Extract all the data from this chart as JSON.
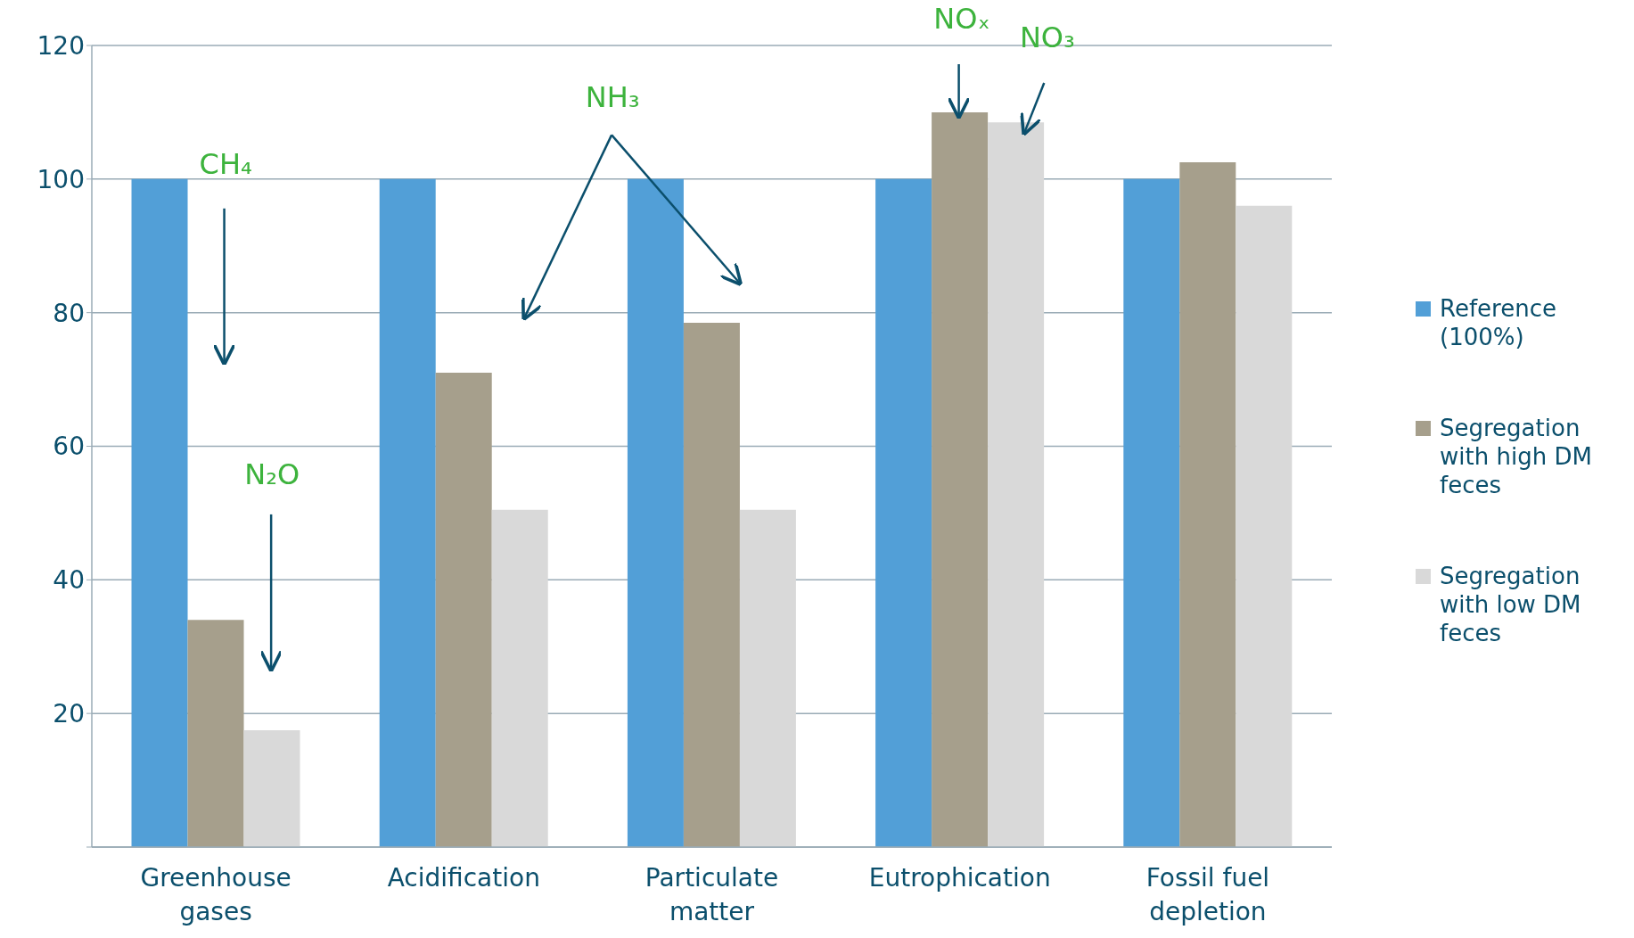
{
  "chart_data": {
    "type": "bar",
    "categories": [
      "Greenhouse gases",
      "Acidification",
      "Particulate matter",
      "Eutrophication",
      "Fossil fuel depletion"
    ],
    "series": [
      {
        "name": "Reference (100%)",
        "color": "#529fd7",
        "values": [
          100,
          100,
          100,
          100,
          100
        ]
      },
      {
        "name": "Segregation with high DM feces",
        "color": "#a69f8c",
        "values": [
          34,
          71,
          78.5,
          110,
          102.5
        ]
      },
      {
        "name": "Segregation with low DM feces",
        "color": "#d9d9d9",
        "values": [
          17.5,
          50.5,
          50.5,
          108.5,
          96
        ]
      }
    ],
    "ylim": [
      0,
      120
    ],
    "yticks": [
      {
        "value": 0,
        "label": null
      },
      20,
      40,
      60,
      80,
      100,
      120
    ],
    "grid": "y",
    "legend": "right",
    "annotations": [
      "CH₄",
      "N₂O",
      "NH₃",
      "NOₓ",
      "NO₃"
    ]
  }
}
